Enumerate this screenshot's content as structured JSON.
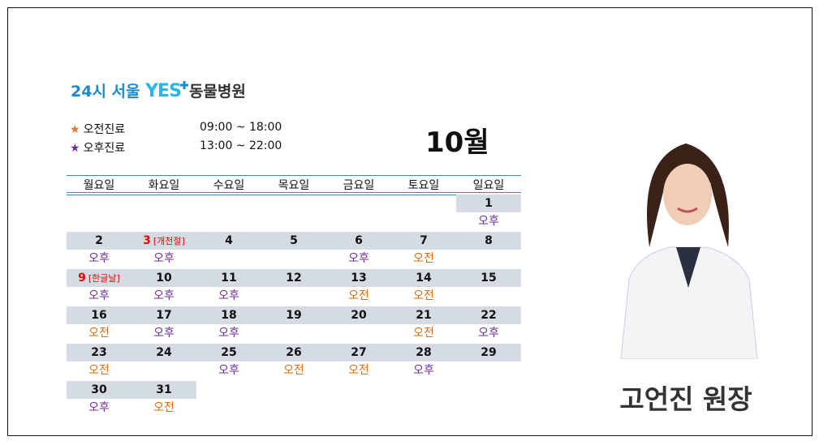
{
  "logo": {
    "prefix": "24시 서울",
    "mark": "YES",
    "suffix": "동물병원"
  },
  "hours": [
    {
      "marker": "★",
      "color": "#e87722",
      "label": "오전진료",
      "time": "09:00 ~ 18:00"
    },
    {
      "marker": "★",
      "color": "#7030a0",
      "label": "오후진료",
      "time": "13:00 ~ 22:00"
    }
  ],
  "month": "10월",
  "shift_colors": {
    "오전": "#e46c0a",
    "오후": "#7030a0"
  },
  "weekdays": [
    "월요일",
    "화요일",
    "수요일",
    "목요일",
    "금요일",
    "토요일",
    "일요일"
  ],
  "weeks": [
    [
      null,
      null,
      null,
      null,
      null,
      null,
      {
        "day": 1,
        "shift": "오후"
      }
    ],
    [
      {
        "day": 2,
        "shift": "오후"
      },
      {
        "day": 3,
        "holiday": "[개천절]",
        "shift": "오후"
      },
      {
        "day": 4
      },
      {
        "day": 5
      },
      {
        "day": 6,
        "shift": "오후"
      },
      {
        "day": 7,
        "shift": "오전"
      },
      {
        "day": 8
      }
    ],
    [
      {
        "day": 9,
        "holiday": "[한글날]",
        "shift": "오후"
      },
      {
        "day": 10,
        "shift": "오후"
      },
      {
        "day": 11,
        "shift": "오후"
      },
      {
        "day": 12
      },
      {
        "day": 13,
        "shift": "오전"
      },
      {
        "day": 14,
        "shift": "오전"
      },
      {
        "day": 15
      }
    ],
    [
      {
        "day": 16,
        "shift": "오전"
      },
      {
        "day": 17,
        "shift": "오후"
      },
      {
        "day": 18,
        "shift": "오후"
      },
      {
        "day": 19
      },
      {
        "day": 20
      },
      {
        "day": 21,
        "shift": "오전"
      },
      {
        "day": 22,
        "shift": "오후"
      }
    ],
    [
      {
        "day": 23,
        "shift": "오전"
      },
      {
        "day": 24
      },
      {
        "day": 25,
        "shift": "오후"
      },
      {
        "day": 26,
        "shift": "오전"
      },
      {
        "day": 27,
        "shift": "오전"
      },
      {
        "day": 28,
        "shift": "오후"
      },
      {
        "day": 29
      }
    ],
    [
      {
        "day": 30,
        "shift": "오후"
      },
      {
        "day": 31,
        "shift": "오전"
      },
      null,
      null,
      null,
      null,
      null
    ]
  ],
  "doctor": "고언진 원장"
}
